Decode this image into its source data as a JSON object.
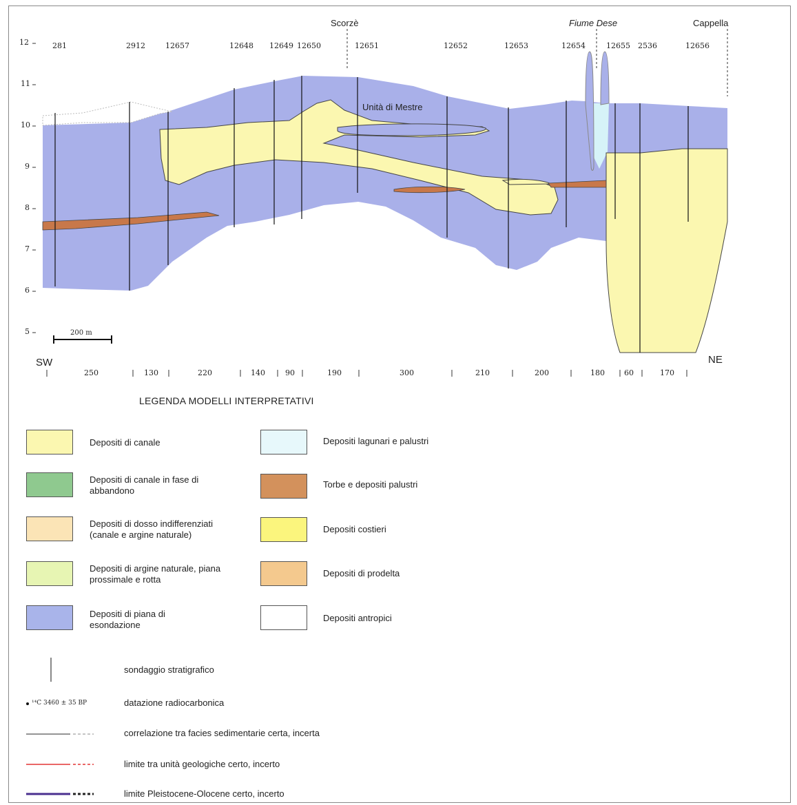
{
  "section": {
    "top_places": [
      "Scorzè",
      "Fiume Dese",
      "Cappella"
    ],
    "boreholes": [
      "281",
      "2912",
      "12657",
      "12648",
      "12649",
      "12650",
      "12651",
      "12652",
      "12653",
      "12654",
      "12655",
      "2536",
      "12656"
    ],
    "y_ticks": [
      "12",
      "11",
      "10",
      "9",
      "8",
      "7",
      "6",
      "5"
    ],
    "unit_label": "Unità di Mestre",
    "scale_label": "200 m",
    "dir_left": "SW",
    "dir_right": "NE",
    "distances": [
      "250",
      "130",
      "220",
      "140",
      "90",
      "190",
      "300",
      "210",
      "200",
      "180",
      "60",
      "170"
    ]
  },
  "legend": {
    "title": "LEGENDA MODELLI INTERPRETATIVI",
    "left": [
      {
        "label": "Depositi di canale",
        "color": "#fbf7b0"
      },
      {
        "label": "Depositi di canale in fase di abbandono",
        "color": "#8fc98f"
      },
      {
        "label": "Depositi di dosso indifferenziati (canale e argine naturale)",
        "color": "#fbe4b6"
      },
      {
        "label": "Depositi di argine naturale, piana prossimale e rotta",
        "color": "#e7f5b3"
      },
      {
        "label": "Depositi di piana di esondazione",
        "color": "#a9b4ea"
      }
    ],
    "right": [
      {
        "label": "Depositi lagunari e palustri",
        "color": "#e7f8fb"
      },
      {
        "label": "Torbe e depositi palustri",
        "color": "#d3915c"
      },
      {
        "label": "Depositi costieri",
        "color": "#fbf57d"
      },
      {
        "label": "Depositi di prodelta",
        "color": "#f4c98e"
      },
      {
        "label": "Depositi antropici",
        "color": "#ffffff"
      }
    ],
    "symbols": [
      {
        "label": "sondaggio stratigrafico"
      },
      {
        "sample": "¹⁴C 3460 ± 35 BP",
        "label": "datazione radiocarbonica"
      },
      {
        "label": "correlazione tra facies sedimentarie certa, incerta"
      },
      {
        "label": "limite tra unità geologiche certo, incerto"
      },
      {
        "label": "limite Pleistocene-Olocene certo, incerto"
      }
    ]
  },
  "colors": {
    "floodplain": "#a9b0e9",
    "channel": "#fbf7b0",
    "peat": "#c8784a",
    "lagoon": "#d6f3f8",
    "coastal": "#fbf57d",
    "correlation": "#555555",
    "unit_limit": "#e33333",
    "pleistocene_limit": "#4a2f8f"
  }
}
